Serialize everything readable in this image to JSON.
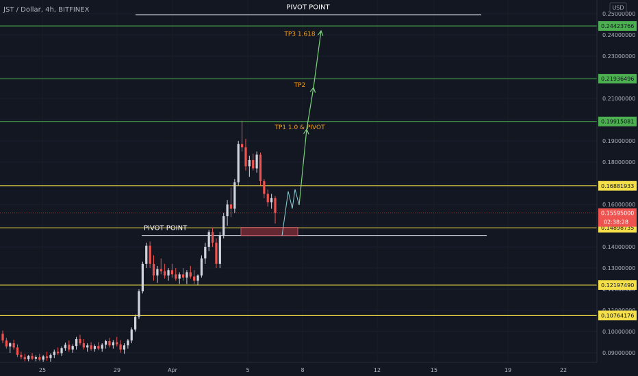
{
  "header": {
    "title": "JST / Dollar, 4h, BITFINEX",
    "currency": "USD"
  },
  "colors": {
    "background": "#131722",
    "up": "#d1d4dc",
    "down": "#ef5350",
    "green_level": "#4caf50",
    "yellow_level": "#f5e04a",
    "white_level": "#d1d4dc",
    "label_orange": "#f7a21b",
    "projection": "#8bd0d8",
    "zone": "#7a2c37"
  },
  "chart_data": {
    "type": "candlestick",
    "ylim": [
      0.0855,
      0.2565
    ],
    "y_ticks": [
      "0.25000000",
      "0.24000000",
      "0.23000000",
      "0.22000000",
      "0.21000000",
      "0.20000000",
      "0.19000000",
      "0.18000000",
      "0.17000000",
      "0.16000000",
      "0.15000000",
      "0.14000000",
      "0.13000000",
      "0.12000000",
      "0.11000000",
      "0.10000000",
      "0.09000000"
    ],
    "x_ticks": [
      "25",
      "29",
      "Apr",
      "5",
      "8",
      "12",
      "15",
      "19",
      "22"
    ],
    "levels": [
      {
        "label": "0.24423766",
        "value": 0.24423766,
        "kind": "green"
      },
      {
        "label": "0.21936496",
        "value": 0.21936496,
        "kind": "green"
      },
      {
        "label": "0.19915081",
        "value": 0.19915081,
        "kind": "green"
      },
      {
        "label": "0.16881933",
        "value": 0.16881933,
        "kind": "yellow"
      },
      {
        "label": "0.14898735",
        "value": 0.14898735,
        "kind": "yellow"
      },
      {
        "label": "0.12197490",
        "value": 0.1219749,
        "kind": "yellow"
      },
      {
        "label": "0.10764176",
        "value": 0.10764176,
        "kind": "yellow"
      }
    ],
    "current_price": {
      "label": "0.15595000",
      "countdown": "02:38:28",
      "value": 0.15595
    },
    "pivot_lines": [
      {
        "label": "PIVOT POINT",
        "value": 0.2495
      },
      {
        "label": "PIVOT POINT",
        "value": 0.1453
      }
    ],
    "targets": [
      {
        "label": "TP3 1.618",
        "value": 0.2405
      },
      {
        "label": "TP2",
        "value": 0.2165
      },
      {
        "label": "TP1 1.0 & PIVOT",
        "value": 0.1965
      }
    ],
    "candles": [
      {
        "o": 0.099,
        "h": 0.1005,
        "l": 0.0945,
        "c": 0.0958
      },
      {
        "o": 0.0958,
        "h": 0.097,
        "l": 0.092,
        "c": 0.093
      },
      {
        "o": 0.093,
        "h": 0.095,
        "l": 0.09,
        "c": 0.0945
      },
      {
        "o": 0.0945,
        "h": 0.0962,
        "l": 0.0915,
        "c": 0.0925
      },
      {
        "o": 0.0925,
        "h": 0.094,
        "l": 0.088,
        "c": 0.089
      },
      {
        "o": 0.089,
        "h": 0.0905,
        "l": 0.087,
        "c": 0.088
      },
      {
        "o": 0.088,
        "h": 0.0895,
        "l": 0.086,
        "c": 0.087
      },
      {
        "o": 0.087,
        "h": 0.089,
        "l": 0.086,
        "c": 0.0885
      },
      {
        "o": 0.0885,
        "h": 0.09,
        "l": 0.0865,
        "c": 0.0872
      },
      {
        "o": 0.0872,
        "h": 0.0888,
        "l": 0.086,
        "c": 0.088
      },
      {
        "o": 0.088,
        "h": 0.0895,
        "l": 0.086,
        "c": 0.0868
      },
      {
        "o": 0.0868,
        "h": 0.089,
        "l": 0.0858,
        "c": 0.0883
      },
      {
        "o": 0.0883,
        "h": 0.0905,
        "l": 0.0862,
        "c": 0.0875
      },
      {
        "o": 0.0875,
        "h": 0.0897,
        "l": 0.0858,
        "c": 0.089
      },
      {
        "o": 0.089,
        "h": 0.0915,
        "l": 0.0875,
        "c": 0.0905
      },
      {
        "o": 0.0905,
        "h": 0.0925,
        "l": 0.089,
        "c": 0.0898
      },
      {
        "o": 0.0898,
        "h": 0.093,
        "l": 0.0885,
        "c": 0.0922
      },
      {
        "o": 0.0922,
        "h": 0.0948,
        "l": 0.091,
        "c": 0.0938
      },
      {
        "o": 0.0938,
        "h": 0.0958,
        "l": 0.0905,
        "c": 0.0915
      },
      {
        "o": 0.0915,
        "h": 0.094,
        "l": 0.09,
        "c": 0.0932
      },
      {
        "o": 0.0932,
        "h": 0.0975,
        "l": 0.0915,
        "c": 0.0965
      },
      {
        "o": 0.0965,
        "h": 0.0985,
        "l": 0.0935,
        "c": 0.0945
      },
      {
        "o": 0.0945,
        "h": 0.0965,
        "l": 0.0915,
        "c": 0.0925
      },
      {
        "o": 0.0925,
        "h": 0.0945,
        "l": 0.0905,
        "c": 0.0935
      },
      {
        "o": 0.0935,
        "h": 0.095,
        "l": 0.091,
        "c": 0.0918
      },
      {
        "o": 0.0918,
        "h": 0.094,
        "l": 0.0905,
        "c": 0.0932
      },
      {
        "o": 0.0932,
        "h": 0.095,
        "l": 0.0912,
        "c": 0.092
      },
      {
        "o": 0.092,
        "h": 0.0945,
        "l": 0.0905,
        "c": 0.0938
      },
      {
        "o": 0.0938,
        "h": 0.0962,
        "l": 0.092,
        "c": 0.0955
      },
      {
        "o": 0.0955,
        "h": 0.097,
        "l": 0.0925,
        "c": 0.0935
      },
      {
        "o": 0.0935,
        "h": 0.096,
        "l": 0.092,
        "c": 0.095
      },
      {
        "o": 0.095,
        "h": 0.0975,
        "l": 0.093,
        "c": 0.094
      },
      {
        "o": 0.094,
        "h": 0.096,
        "l": 0.09,
        "c": 0.0915
      },
      {
        "o": 0.0915,
        "h": 0.0945,
        "l": 0.0895,
        "c": 0.0935
      },
      {
        "o": 0.0935,
        "h": 0.0965,
        "l": 0.092,
        "c": 0.0958
      },
      {
        "o": 0.0958,
        "h": 0.102,
        "l": 0.0945,
        "c": 0.101
      },
      {
        "o": 0.101,
        "h": 0.108,
        "l": 0.1,
        "c": 0.107
      },
      {
        "o": 0.107,
        "h": 0.12,
        "l": 0.106,
        "c": 0.119
      },
      {
        "o": 0.119,
        "h": 0.133,
        "l": 0.118,
        "c": 0.132
      },
      {
        "o": 0.132,
        "h": 0.142,
        "l": 0.13,
        "c": 0.1405
      },
      {
        "o": 0.1405,
        "h": 0.1425,
        "l": 0.13,
        "c": 0.132
      },
      {
        "o": 0.132,
        "h": 0.136,
        "l": 0.124,
        "c": 0.1265
      },
      {
        "o": 0.1265,
        "h": 0.131,
        "l": 0.123,
        "c": 0.1295
      },
      {
        "o": 0.1295,
        "h": 0.1345,
        "l": 0.127,
        "c": 0.1285
      },
      {
        "o": 0.1285,
        "h": 0.132,
        "l": 0.125,
        "c": 0.1265
      },
      {
        "o": 0.1265,
        "h": 0.13,
        "l": 0.124,
        "c": 0.129
      },
      {
        "o": 0.129,
        "h": 0.132,
        "l": 0.1255,
        "c": 0.127
      },
      {
        "o": 0.127,
        "h": 0.13,
        "l": 0.124,
        "c": 0.125
      },
      {
        "o": 0.125,
        "h": 0.128,
        "l": 0.1225,
        "c": 0.127
      },
      {
        "o": 0.127,
        "h": 0.13,
        "l": 0.124,
        "c": 0.1255
      },
      {
        "o": 0.1255,
        "h": 0.129,
        "l": 0.1225,
        "c": 0.128
      },
      {
        "o": 0.128,
        "h": 0.131,
        "l": 0.125,
        "c": 0.126
      },
      {
        "o": 0.126,
        "h": 0.129,
        "l": 0.1225,
        "c": 0.124
      },
      {
        "o": 0.124,
        "h": 0.127,
        "l": 0.122,
        "c": 0.1265
      },
      {
        "o": 0.1265,
        "h": 0.136,
        "l": 0.1255,
        "c": 0.1345
      },
      {
        "o": 0.1345,
        "h": 0.142,
        "l": 0.132,
        "c": 0.14
      },
      {
        "o": 0.14,
        "h": 0.148,
        "l": 0.138,
        "c": 0.147
      },
      {
        "o": 0.147,
        "h": 0.149,
        "l": 0.14,
        "c": 0.142
      },
      {
        "o": 0.142,
        "h": 0.144,
        "l": 0.13,
        "c": 0.132
      },
      {
        "o": 0.132,
        "h": 0.147,
        "l": 0.13,
        "c": 0.1455
      },
      {
        "o": 0.1455,
        "h": 0.156,
        "l": 0.144,
        "c": 0.1545
      },
      {
        "o": 0.1545,
        "h": 0.162,
        "l": 0.15,
        "c": 0.16
      },
      {
        "o": 0.16,
        "h": 0.168,
        "l": 0.154,
        "c": 0.158
      },
      {
        "o": 0.158,
        "h": 0.172,
        "l": 0.156,
        "c": 0.1705
      },
      {
        "o": 0.1705,
        "h": 0.19,
        "l": 0.169,
        "c": 0.1885
      },
      {
        "o": 0.1885,
        "h": 0.1995,
        "l": 0.185,
        "c": 0.187
      },
      {
        "o": 0.187,
        "h": 0.191,
        "l": 0.176,
        "c": 0.178
      },
      {
        "o": 0.178,
        "h": 0.183,
        "l": 0.173,
        "c": 0.181
      },
      {
        "o": 0.181,
        "h": 0.184,
        "l": 0.176,
        "c": 0.177
      },
      {
        "o": 0.177,
        "h": 0.185,
        "l": 0.175,
        "c": 0.1835
      },
      {
        "o": 0.1835,
        "h": 0.1845,
        "l": 0.169,
        "c": 0.171
      },
      {
        "o": 0.171,
        "h": 0.172,
        "l": 0.163,
        "c": 0.165
      },
      {
        "o": 0.165,
        "h": 0.167,
        "l": 0.159,
        "c": 0.161
      },
      {
        "o": 0.161,
        "h": 0.165,
        "l": 0.158,
        "c": 0.163
      },
      {
        "o": 0.163,
        "h": 0.164,
        "l": 0.151,
        "c": 0.156
      }
    ]
  }
}
